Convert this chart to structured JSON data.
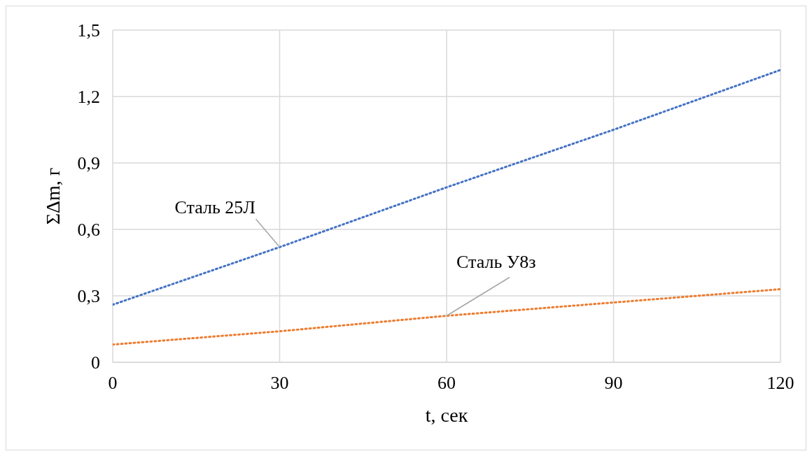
{
  "chart_data": {
    "type": "line",
    "xlabel": "t, сек",
    "ylabel": "ΣΔm, г",
    "x": [
      0,
      30,
      60,
      90,
      120
    ],
    "series": [
      {
        "name": "Сталь 25Л",
        "color": "#4472c4",
        "values": [
          0.26,
          0.52,
          0.79,
          1.05,
          1.32
        ]
      },
      {
        "name": "Сталь У8з",
        "color": "#ed7d31",
        "values": [
          0.08,
          0.14,
          0.21,
          0.27,
          0.33
        ]
      }
    ],
    "xlim": [
      0,
      120
    ],
    "xticks": [
      0,
      30,
      60,
      90,
      120
    ],
    "ylim": [
      0,
      1.5
    ],
    "yticks": [
      0,
      {
        "value": 0.3,
        "label": "0,3"
      },
      {
        "value": 0.6,
        "label": "0,6"
      },
      {
        "value": 0.9,
        "label": "0,9"
      },
      {
        "value": 1.2,
        "label": "1,2"
      },
      {
        "value": 1.5,
        "label": "1,5"
      }
    ],
    "grid": true,
    "legend": false,
    "marker": "none",
    "line_style": "dotted"
  }
}
